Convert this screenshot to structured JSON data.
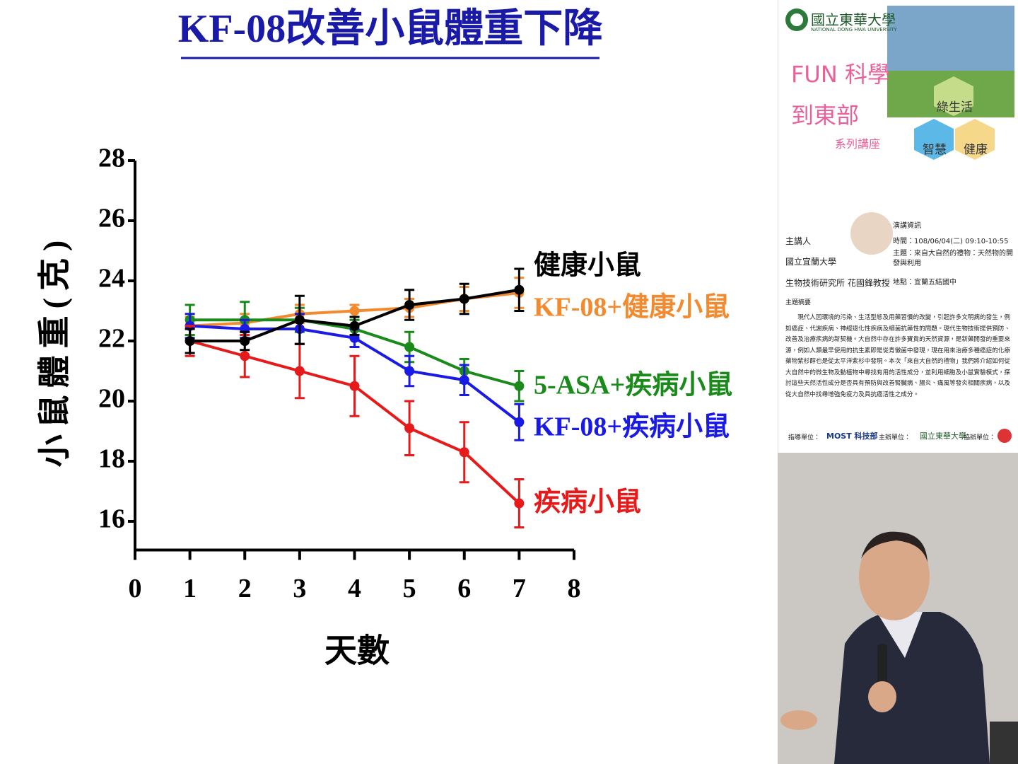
{
  "chart_data": {
    "type": "line",
    "title": "KF-08改善小鼠體重下降",
    "y_label": "小鼠體重(克)",
    "x_label": "天數",
    "x": [
      1,
      2,
      3,
      4,
      5,
      6,
      7
    ],
    "xlim": [
      0,
      8
    ],
    "xticks": [
      0,
      1,
      2,
      3,
      4,
      5,
      6,
      7,
      8
    ],
    "ylim": [
      15,
      28
    ],
    "yticks": [
      16,
      18,
      20,
      22,
      24,
      26,
      28
    ],
    "series": [
      {
        "name": "健康小鼠",
        "color": "#000000",
        "values": [
          22.0,
          22.0,
          22.7,
          22.5,
          23.2,
          23.4,
          23.7
        ],
        "errors": [
          0.4,
          0.3,
          0.8,
          0.3,
          0.5,
          0.5,
          0.7
        ]
      },
      {
        "name": "KF-08+健康小鼠",
        "color": "#f28a30",
        "values": [
          22.5,
          22.6,
          22.9,
          23.0,
          23.1,
          23.4,
          23.6
        ],
        "errors": [
          0.3,
          0.3,
          0.3,
          0.2,
          0.3,
          0.4,
          0.5
        ]
      },
      {
        "name": "5-ASA+疾病小鼠",
        "color": "#1a8a1a",
        "values": [
          22.7,
          22.7,
          22.7,
          22.4,
          21.8,
          21.0,
          20.5
        ],
        "errors": [
          0.5,
          0.6,
          0.4,
          0.3,
          0.5,
          0.4,
          0.5
        ]
      },
      {
        "name": "KF-08+疾病小鼠",
        "color": "#1a1ae6",
        "values": [
          22.5,
          22.4,
          22.4,
          22.1,
          21.0,
          20.7,
          19.3
        ],
        "errors": [
          0.4,
          0.3,
          0.5,
          0.3,
          0.5,
          0.5,
          0.6
        ]
      },
      {
        "name": "疾病小鼠",
        "color": "#e61a1a",
        "values": [
          22.0,
          21.5,
          21.0,
          20.5,
          19.1,
          18.3,
          16.6
        ],
        "errors": [
          0.5,
          0.7,
          0.9,
          1.0,
          0.9,
          1.0,
          0.8
        ]
      }
    ]
  },
  "sidebar": {
    "university": "國立東華大學",
    "university_en": "NATIONAL DONG HWA UNIVERSITY",
    "series_line1": "FUN 科學",
    "series_line2": "到東部",
    "series_line3": "系列講座",
    "hexes": [
      "綠生活",
      "智慧",
      "健康"
    ],
    "info_title": "演講資訊",
    "speaker_label": "主講人",
    "speaker_org": "國立宜蘭大學",
    "speaker_name": "生物技術研究所 花國鋒教授",
    "time": "時間：108/06/04(二) 09:10-10:55",
    "topic": "主題：來自大自然的禮物：天然物的開發與利用",
    "place": "地點：宜蘭五結國中",
    "abstract_title": "主題摘要",
    "abstract": "現代人因環境的污染、生活型態及用藥習慣的改變，引起許多文明病的發生，例如癌症、代謝疾病、神經退化性疾病及細菌抗藥性的問題。現代生物技術提供預防、改善及治療疾病的新契機。大自然中存在許多寶貴的天然資源，是新藥開發的重要來源，例如人類最早使用的抗生素即是從青黴菌中發現，現在用來治療多種癌症的化療藥物紫杉醇也是從太平洋紫杉中發現。本次「來自大自然的禮物」我們將介紹如何從大自然中的微生物及動植物中尋找有用的活性成分，並利用細胞及小鼠實驗模式，探討這些天然活性成分是否具有預防與改善腎臟病、腸炎、痛風等發炎相關疾病，以及從大自然中找尋增強免疫力及具抗癌活性之成分。",
    "guide_label": "指導單位：",
    "most": "MOST 科技部",
    "host_label": "主辦單位：",
    "host": "國立東華大學",
    "co_label": "協辦單位："
  }
}
